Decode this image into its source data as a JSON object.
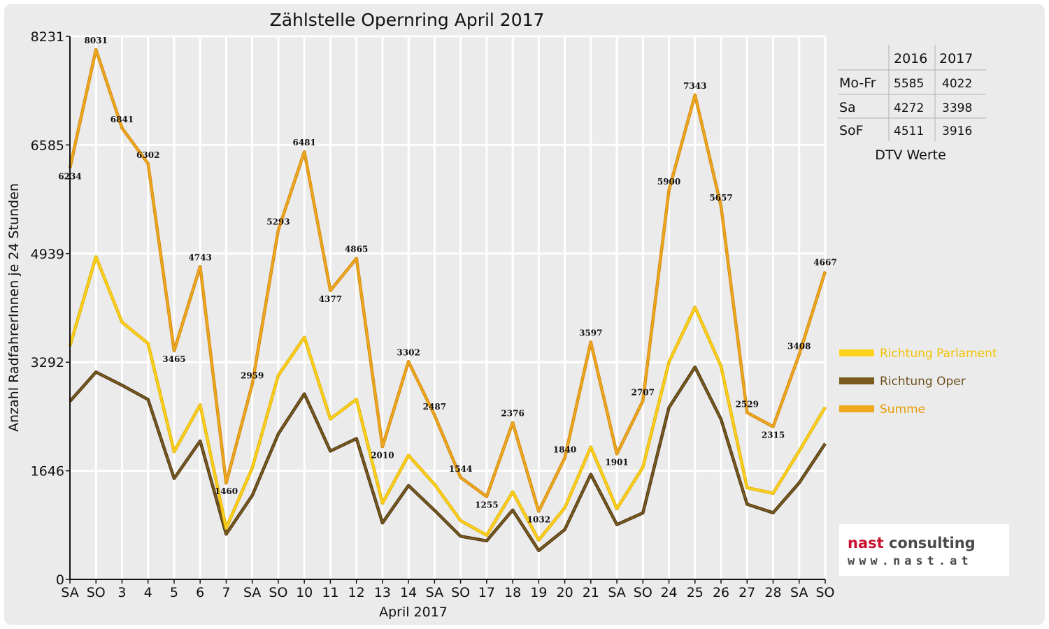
{
  "chart_data": {
    "type": "line",
    "title": "Zählstelle Opernring April 2017",
    "xlabel": "April 2017",
    "ylabel": "Anzahl RadfahrerInnen je 24 Stunden",
    "ylim": [
      0,
      8231
    ],
    "yticks": [
      "0",
      "1646",
      "3292",
      "4939",
      "6585",
      "8231"
    ],
    "grid": true,
    "legend_position": "right",
    "categories": [
      "SA",
      "SO",
      "3",
      "4",
      "5",
      "6",
      "7",
      "SA",
      "SO",
      "10",
      "11",
      "12",
      "13",
      "14",
      "SA",
      "SO",
      "17",
      "18",
      "19",
      "20",
      "21",
      "SA",
      "SO",
      "24",
      "25",
      "26",
      "27",
      "28",
      "SA",
      "SO"
    ],
    "category_colors": [
      "#111111",
      "#e00000",
      "#111111",
      "#111111",
      "#111111",
      "#111111",
      "#111111",
      "#111111",
      "#e00000",
      "#111111",
      "#111111",
      "#111111",
      "#111111",
      "#111111",
      "#111111",
      "#e00000",
      "#e00000",
      "#111111",
      "#111111",
      "#111111",
      "#111111",
      "#111111",
      "#e00000",
      "#111111",
      "#111111",
      "#111111",
      "#111111",
      "#111111",
      "#111111",
      "#e00000"
    ],
    "series": [
      {
        "name": "Richtung Parlament",
        "color": "#ffd21f",
        "values": [
          3536,
          4889,
          3898,
          3575,
          1935,
          2645,
          775,
          1688,
          3090,
          3670,
          2432,
          2730,
          1155,
          1880,
          1440,
          890,
          670,
          1325,
          595,
          1085,
          2005,
          1070,
          1700,
          3295,
          4125,
          3230,
          1390,
          1305,
          1945,
          2610
        ]
      },
      {
        "name": "Richtung Oper",
        "color": "#7a5a1e",
        "values": [
          2698,
          3142,
          2943,
          2727,
          1530,
          2098,
          685,
          1271,
          2203,
          2811,
          1945,
          2135,
          855,
          1422,
          1047,
          654,
          585,
          1051,
          437,
          755,
          1592,
          831,
          1007,
          2605,
          3218,
          2427,
          1139,
          1010,
          1463,
          2057
        ]
      },
      {
        "name": "Summe",
        "color": "#f0a81e",
        "values": [
          6234,
          8031,
          6841,
          6302,
          3465,
          4743,
          1460,
          2959,
          5293,
          6481,
          4377,
          4865,
          2010,
          3302,
          2487,
          1544,
          1255,
          2376,
          1032,
          1840,
          3597,
          1901,
          2707,
          5900,
          7343,
          5657,
          2529,
          2315,
          3408,
          4667
        ],
        "labels": [
          "6234",
          "8031",
          "6841",
          "6302",
          "3465",
          "4743",
          "1460",
          "2959",
          "5293",
          "6481",
          "4377",
          "4865",
          "2010",
          "3302",
          "2487",
          "1544",
          "1255",
          "2376",
          "1032",
          "1840",
          "3597",
          "1901",
          "2707",
          "5900",
          "7343",
          "5657",
          "2529",
          "2315",
          "3408",
          "4667"
        ]
      }
    ]
  },
  "dtv_table": {
    "caption": "DTV Werte",
    "headers": [
      "",
      "2016",
      "2017"
    ],
    "rows": [
      {
        "label": "Mo-Fr",
        "v2016": "5585",
        "v2017": "4022"
      },
      {
        "label": "Sa",
        "v2016": "4272",
        "v2017": "3398"
      },
      {
        "label": "SoF",
        "v2016": "4511",
        "v2017": "3916"
      }
    ]
  },
  "logo": {
    "name_part1": "nast",
    "name_part2": " consulting",
    "url": "www.nast.at"
  }
}
